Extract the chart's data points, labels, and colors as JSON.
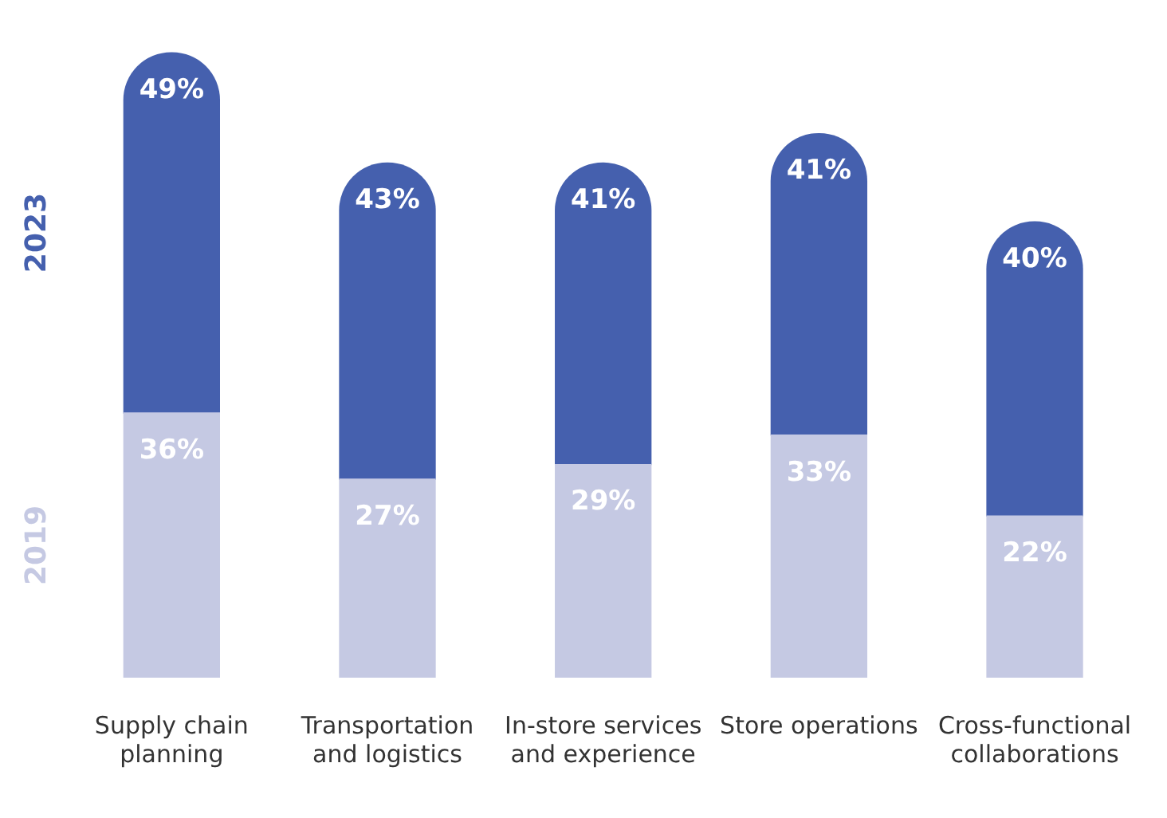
{
  "chart_data": {
    "type": "bar",
    "stacked": true,
    "legend": false,
    "grid": false,
    "tick_labels": "x",
    "categories": [
      "Supply chain planning",
      "Transportation and logistics",
      "In-store services and experience",
      "Store operations",
      "Cross-functional collaborations"
    ],
    "series": [
      {
        "name": "2019",
        "color": "#c5c9e3",
        "values": [
          36,
          27,
          29,
          33,
          22
        ],
        "value_labels": [
          "36%",
          "27%",
          "29%",
          "33%",
          "22%"
        ]
      },
      {
        "name": "2023",
        "color": "#4560ae",
        "values": [
          49,
          43,
          41,
          41,
          40
        ],
        "value_labels": [
          "49%",
          "43%",
          "41%",
          "41%",
          "40%"
        ]
      }
    ]
  }
}
